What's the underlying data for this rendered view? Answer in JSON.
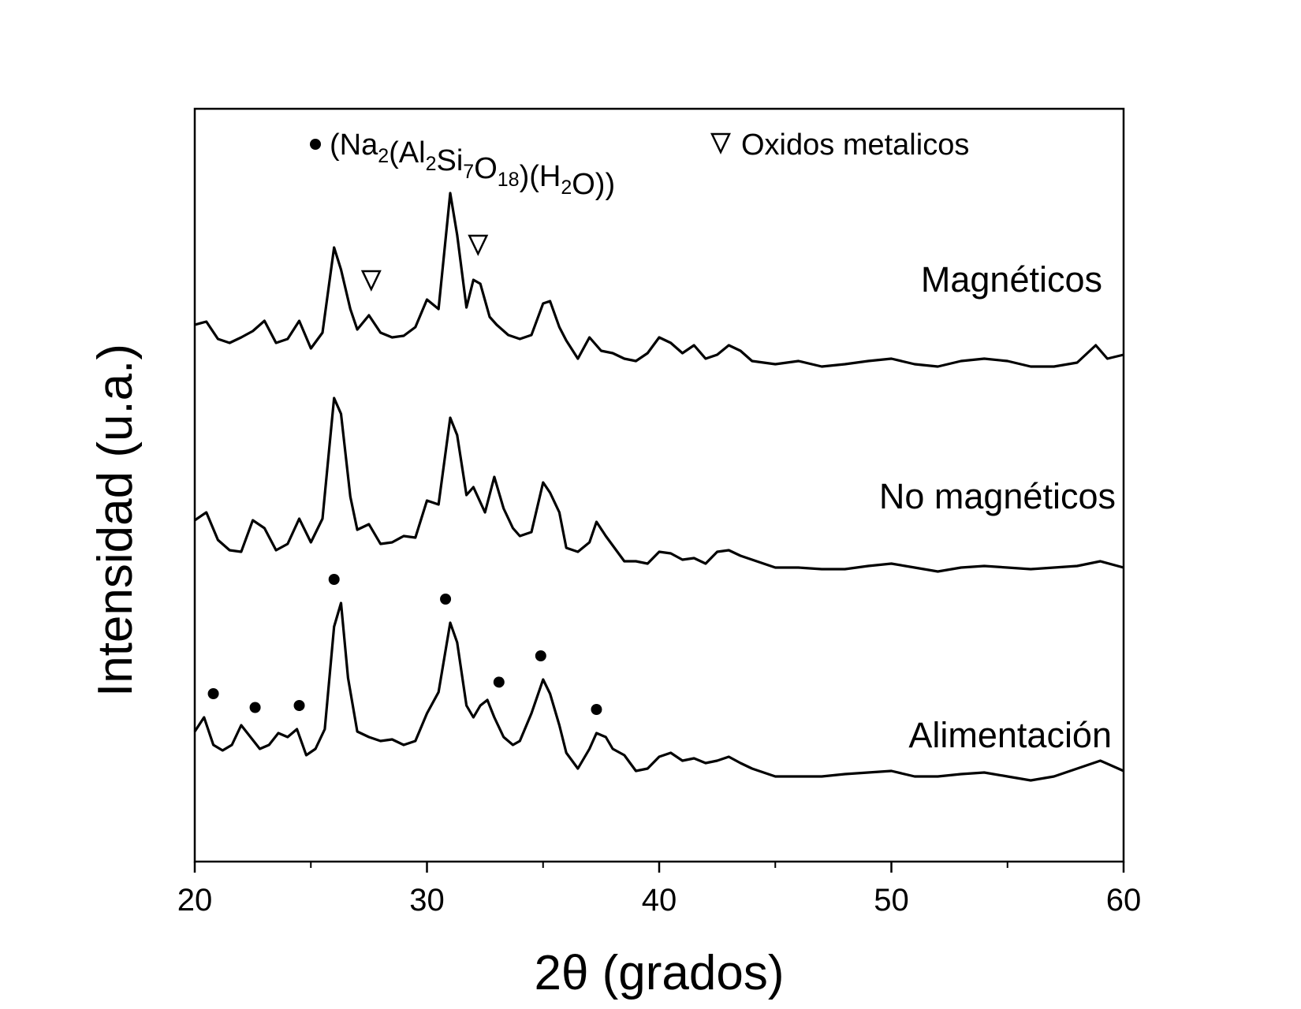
{
  "chart_data": {
    "type": "line",
    "title": "",
    "xlabel": "2θ (grados)",
    "ylabel": "Intensidad (u.a.)",
    "xlim": [
      20,
      60
    ],
    "xticks": [
      20,
      30,
      40,
      50,
      60
    ],
    "xticks_minor": [
      25,
      35,
      45,
      55
    ],
    "yticks": [],
    "grid": false,
    "legend": {
      "placement": "top",
      "entries": [
        {
          "marker": "circle",
          "label_parts": [
            {
              "t": "(Na",
              "sub": false
            },
            {
              "t": "2",
              "sub": true
            },
            {
              "t": "(Al",
              "sub": false
            },
            {
              "t": "2",
              "sub": true
            },
            {
              "t": "Si",
              "sub": false
            },
            {
              "t": "7",
              "sub": true
            },
            {
              "t": "O",
              "sub": false
            },
            {
              "t": "18",
              "sub": true
            },
            {
              "t": ")(H",
              "sub": false
            },
            {
              "t": "2",
              "sub": true
            },
            {
              "t": "O))",
              "sub": false
            }
          ]
        },
        {
          "marker": "triangle-down-open",
          "label": "Oxidos metalicos"
        }
      ]
    },
    "series": [
      {
        "name": "Magnéticos",
        "x": [
          20,
          20.5,
          21,
          21.5,
          22,
          22.5,
          23,
          23.5,
          24,
          24.5,
          25,
          25.5,
          26,
          26.3,
          26.7,
          27,
          27.5,
          28,
          28.5,
          29,
          29.5,
          30,
          30.5,
          31,
          31.3,
          31.7,
          32,
          32.3,
          32.7,
          33,
          33.5,
          34,
          34.5,
          35,
          35.3,
          35.7,
          36,
          36.5,
          37,
          37.5,
          38,
          38.5,
          39,
          39.5,
          40,
          40.5,
          41,
          41.5,
          42,
          42.5,
          43,
          43.5,
          44,
          44.5,
          45,
          46,
          47,
          48,
          49,
          50,
          51,
          52,
          53,
          54,
          55,
          56,
          57,
          58,
          58.8,
          59.3,
          60
        ],
        "y": [
          412,
          408,
          430,
          435,
          428,
          420,
          407,
          435,
          430,
          407,
          442,
          422,
          314,
          342,
          392,
          418,
          400,
          422,
          428,
          426,
          415,
          380,
          392,
          245,
          298,
          390,
          355,
          360,
          402,
          412,
          425,
          430,
          425,
          385,
          382,
          415,
          432,
          455,
          428,
          445,
          448,
          455,
          458,
          448,
          428,
          435,
          448,
          438,
          455,
          450,
          438,
          445,
          458,
          460,
          462,
          458,
          465,
          462,
          458,
          455,
          462,
          465,
          458,
          455,
          458,
          465,
          465,
          460,
          438,
          455,
          450
        ]
      },
      {
        "name": "No magnéticos",
        "x": [
          20,
          20.5,
          21,
          21.5,
          22,
          22.5,
          23,
          23.5,
          24,
          24.5,
          25,
          25.5,
          26,
          26.3,
          26.7,
          27,
          27.5,
          28,
          28.5,
          29,
          29.5,
          30,
          30.5,
          31,
          31.3,
          31.7,
          32,
          32.5,
          32.9,
          33.3,
          33.7,
          34,
          34.5,
          35,
          35.3,
          35.7,
          36,
          36.5,
          37,
          37.3,
          37.7,
          38,
          38.5,
          39,
          39.5,
          40,
          40.5,
          41,
          41.5,
          42,
          42.5,
          43,
          43.5,
          44,
          44.5,
          45,
          46,
          47,
          48,
          49,
          50,
          51,
          52,
          53,
          54,
          55,
          56,
          57,
          58,
          59,
          60
        ],
        "y": [
          660,
          650,
          685,
          698,
          700,
          660,
          670,
          698,
          690,
          658,
          688,
          658,
          505,
          525,
          630,
          672,
          665,
          690,
          688,
          680,
          682,
          635,
          640,
          530,
          552,
          628,
          618,
          650,
          605,
          645,
          670,
          680,
          675,
          612,
          625,
          650,
          695,
          700,
          688,
          662,
          680,
          692,
          712,
          712,
          715,
          700,
          702,
          710,
          708,
          715,
          700,
          698,
          705,
          710,
          715,
          720,
          720,
          722,
          722,
          718,
          715,
          720,
          725,
          720,
          718,
          720,
          722,
          720,
          718,
          712,
          720
        ]
      },
      {
        "name": "Alimentación",
        "x": [
          20,
          20.4,
          20.8,
          21.2,
          21.6,
          22,
          22.4,
          22.8,
          23.2,
          23.6,
          24,
          24.4,
          24.8,
          25.2,
          25.6,
          26,
          26.3,
          26.6,
          27,
          27.5,
          28,
          28.5,
          29,
          29.5,
          30,
          30.5,
          31,
          31.3,
          31.7,
          32,
          32.3,
          32.6,
          32.9,
          33.3,
          33.7,
          34,
          34.5,
          35,
          35.3,
          35.7,
          36,
          36.5,
          37,
          37.3,
          37.7,
          38,
          38.5,
          39,
          39.5,
          40,
          40.5,
          41,
          41.5,
          42,
          42.5,
          43,
          43.5,
          44,
          44.5,
          45,
          46,
          47,
          48,
          49,
          50,
          51,
          52,
          53,
          54,
          55,
          56,
          57,
          58,
          59,
          60
        ],
        "y": [
          928,
          910,
          945,
          952,
          945,
          920,
          935,
          950,
          945,
          930,
          935,
          925,
          958,
          950,
          925,
          795,
          765,
          860,
          928,
          935,
          940,
          938,
          945,
          940,
          905,
          878,
          790,
          815,
          895,
          910,
          895,
          888,
          910,
          935,
          945,
          940,
          905,
          862,
          880,
          920,
          955,
          975,
          950,
          930,
          935,
          950,
          958,
          978,
          975,
          960,
          955,
          965,
          962,
          968,
          965,
          960,
          968,
          975,
          980,
          985,
          985,
          985,
          982,
          980,
          978,
          985,
          985,
          982,
          980,
          985,
          990,
          985,
          975,
          965,
          978
        ]
      }
    ],
    "series_label_positions": "right",
    "annotations": {
      "circle_markers_alimentacion_x": [
        20.8,
        22.6,
        24.5,
        26.0,
        30.8,
        33.1,
        34.9,
        37.3
      ],
      "triangle_markers_magneticos_x": [
        27.6,
        32.2
      ]
    }
  }
}
